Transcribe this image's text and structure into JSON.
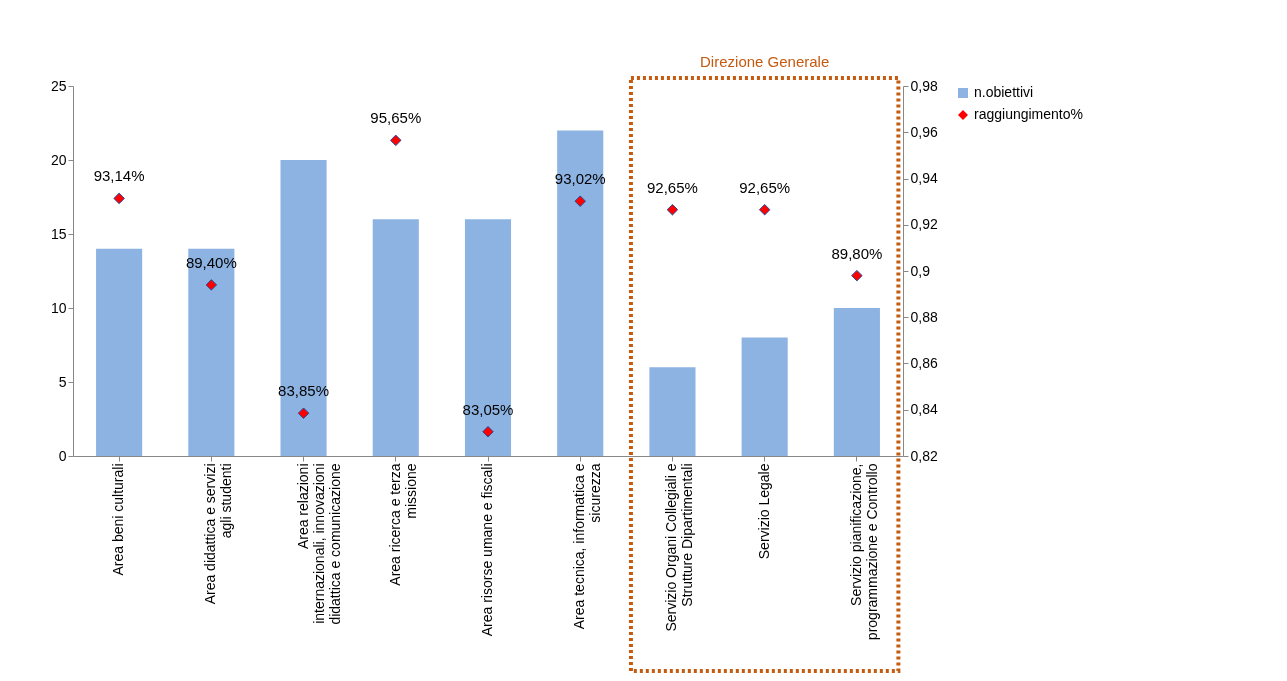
{
  "chart_data": {
    "type": "bar",
    "categories": [
      "Area beni culturali",
      "Area didattica e servizi agli studenti",
      "Area relazioni internazionali, innovazioni didattica e comunicazione",
      "Area ricerca e terza missione",
      "Area risorse umane e fiscali",
      "Area tecnica, informatica e sicurezza",
      "Servizio Organi Collegiali e Strutture Dipartimentali",
      "Servizio Legale",
      "Servizio pianificazione, programmazione e Controllo"
    ],
    "series": [
      {
        "name": "n.obiettivi",
        "color": "#8db3e2",
        "values": [
          14,
          14,
          20,
          16,
          16,
          22,
          6,
          8,
          10
        ]
      },
      {
        "name": "raggiungimento%",
        "type": "scatter",
        "axis": "y2",
        "color": "#ff0000",
        "marker": "diamond",
        "values": [
          0.9314,
          0.894,
          0.8385,
          0.9565,
          0.8305,
          0.9302,
          0.9265,
          0.9265,
          0.898
        ],
        "value_labels": [
          "93,14%",
          "89,40%",
          "83,85%",
          "95,65%",
          "83,05%",
          "93,02%",
          "92,65%",
          "92,65%",
          "89,80%"
        ]
      }
    ],
    "ylim": [
      0,
      25
    ],
    "yticks": [
      0,
      5,
      10,
      15,
      20,
      25
    ],
    "y2lim": [
      0.82,
      0.98
    ],
    "y2ticks": [
      {
        "value": 0.82,
        "label": "0,82"
      },
      {
        "value": 0.84,
        "label": "0,84"
      },
      {
        "value": 0.86,
        "label": "0,86"
      },
      {
        "value": 0.88,
        "label": "0,88"
      },
      {
        "value": 0.9,
        "label": "0,9"
      },
      {
        "value": 0.92,
        "label": "0,92"
      },
      {
        "value": 0.94,
        "label": "0,94"
      },
      {
        "value": 0.96,
        "label": "0,96"
      },
      {
        "value": 0.98,
        "label": "0,98"
      }
    ],
    "annotations": [
      "Direzione Generale"
    ],
    "grid": false,
    "legend": "right"
  }
}
